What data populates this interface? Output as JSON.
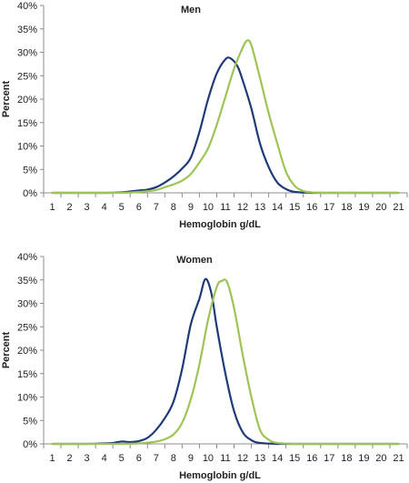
{
  "chart_data": [
    {
      "type": "line",
      "title": "Men",
      "xlabel": "Hemoglobin g/dL",
      "ylabel": "Percent",
      "xlim": [
        0.5,
        21.5
      ],
      "ylim": [
        0,
        40
      ],
      "y_ticks": [
        "0%",
        "5%",
        "10%",
        "15%",
        "20%",
        "25%",
        "30%",
        "35%",
        "40%"
      ],
      "x_ticks": [
        "1",
        "2",
        "3",
        "4",
        "5",
        "6",
        "7",
        "8",
        "9",
        "10",
        "11",
        "12",
        "13",
        "14",
        "15",
        "16",
        "17",
        "18",
        "19",
        "20",
        "21"
      ],
      "grid": false,
      "legend": "none",
      "series": [
        {
          "color": "#1f3a78",
          "points": [
            [
              1,
              0
            ],
            [
              2,
              0
            ],
            [
              3,
              0
            ],
            [
              4,
              0
            ],
            [
              5,
              0.1
            ],
            [
              5.5,
              0.3
            ],
            [
              6,
              0.5
            ],
            [
              6.5,
              0.7
            ],
            [
              7,
              1.2
            ],
            [
              7.5,
              2.2
            ],
            [
              8,
              3.5
            ],
            [
              8.5,
              5.2
            ],
            [
              9,
              7.5
            ],
            [
              9.5,
              13
            ],
            [
              10,
              20
            ],
            [
              10.5,
              25.5
            ],
            [
              11,
              28.5
            ],
            [
              11.3,
              28.7
            ],
            [
              11.7,
              27
            ],
            [
              12,
              24
            ],
            [
              12.5,
              18
            ],
            [
              13,
              10.5
            ],
            [
              13.5,
              5.5
            ],
            [
              14,
              2.2
            ],
            [
              14.5,
              0.8
            ],
            [
              15,
              0.2
            ],
            [
              16,
              0
            ],
            [
              17,
              0
            ],
            [
              18,
              0
            ],
            [
              19,
              0
            ],
            [
              20,
              0
            ],
            [
              21,
              0
            ]
          ]
        },
        {
          "color": "#9dc455",
          "points": [
            [
              1,
              0
            ],
            [
              2,
              0
            ],
            [
              3,
              0
            ],
            [
              4,
              0
            ],
            [
              5,
              0
            ],
            [
              6,
              0.2
            ],
            [
              7,
              0.6
            ],
            [
              7.5,
              1.2
            ],
            [
              8,
              1.8
            ],
            [
              8.5,
              2.6
            ],
            [
              9,
              4
            ],
            [
              9.5,
              6.5
            ],
            [
              10,
              9.5
            ],
            [
              10.5,
              14.5
            ],
            [
              11,
              20.5
            ],
            [
              11.5,
              26.5
            ],
            [
              12,
              31
            ],
            [
              12.25,
              32.5
            ],
            [
              12.5,
              31.5
            ],
            [
              13,
              24.5
            ],
            [
              13.5,
              17
            ],
            [
              14,
              10.5
            ],
            [
              14.5,
              4.5
            ],
            [
              15,
              1.5
            ],
            [
              15.5,
              0.4
            ],
            [
              16,
              0.1
            ],
            [
              17,
              0
            ],
            [
              18,
              0
            ],
            [
              19,
              0
            ],
            [
              20,
              0
            ],
            [
              21,
              0
            ]
          ]
        }
      ]
    },
    {
      "type": "line",
      "title": "Women",
      "xlabel": "Hemoglobin g/dL",
      "ylabel": "Percent",
      "xlim": [
        0.5,
        21.5
      ],
      "ylim": [
        0,
        40
      ],
      "y_ticks": [
        "0%",
        "5%",
        "10%",
        "15%",
        "20%",
        "25%",
        "30%",
        "35%",
        "40%"
      ],
      "x_ticks": [
        "1",
        "2",
        "3",
        "4",
        "5",
        "6",
        "7",
        "8",
        "9",
        "10",
        "11",
        "12",
        "13",
        "14",
        "15",
        "16",
        "17",
        "18",
        "19",
        "20",
        "21"
      ],
      "grid": false,
      "legend": "none",
      "series": [
        {
          "color": "#1f3a78",
          "points": [
            [
              1,
              0
            ],
            [
              2,
              0
            ],
            [
              3,
              0
            ],
            [
              4,
              0.1
            ],
            [
              4.5,
              0.2
            ],
            [
              5,
              0.5
            ],
            [
              5.5,
              0.4
            ],
            [
              6,
              0.6
            ],
            [
              6.5,
              1.3
            ],
            [
              7,
              3
            ],
            [
              7.5,
              5.5
            ],
            [
              8,
              9
            ],
            [
              8.5,
              16
            ],
            [
              9,
              25.5
            ],
            [
              9.5,
              31
            ],
            [
              9.85,
              35.2
            ],
            [
              10.2,
              32
            ],
            [
              10.5,
              25
            ],
            [
              11,
              15
            ],
            [
              11.5,
              7
            ],
            [
              12,
              2.5
            ],
            [
              12.5,
              0.8
            ],
            [
              13,
              0.2
            ],
            [
              14,
              0
            ],
            [
              15,
              0
            ],
            [
              16,
              0
            ],
            [
              17,
              0
            ],
            [
              18,
              0
            ],
            [
              19,
              0
            ],
            [
              20,
              0
            ],
            [
              21,
              0
            ]
          ]
        },
        {
          "color": "#9dc455",
          "points": [
            [
              1,
              0
            ],
            [
              2,
              0
            ],
            [
              3,
              0
            ],
            [
              4,
              0
            ],
            [
              5,
              0
            ],
            [
              6,
              0.1
            ],
            [
              7,
              0.5
            ],
            [
              7.5,
              1
            ],
            [
              8,
              2
            ],
            [
              8.5,
              4.5
            ],
            [
              9,
              9.5
            ],
            [
              9.5,
              17
            ],
            [
              10,
              26.5
            ],
            [
              10.5,
              33.5
            ],
            [
              10.8,
              34.8
            ],
            [
              11.1,
              34.5
            ],
            [
              11.5,
              29
            ],
            [
              12,
              19
            ],
            [
              12.5,
              10
            ],
            [
              13,
              3
            ],
            [
              13.5,
              0.9
            ],
            [
              14,
              0.2
            ],
            [
              15,
              0
            ],
            [
              16,
              0
            ],
            [
              17,
              0
            ],
            [
              18,
              0
            ],
            [
              19,
              0
            ],
            [
              20,
              0
            ],
            [
              21,
              0
            ]
          ]
        }
      ]
    }
  ]
}
